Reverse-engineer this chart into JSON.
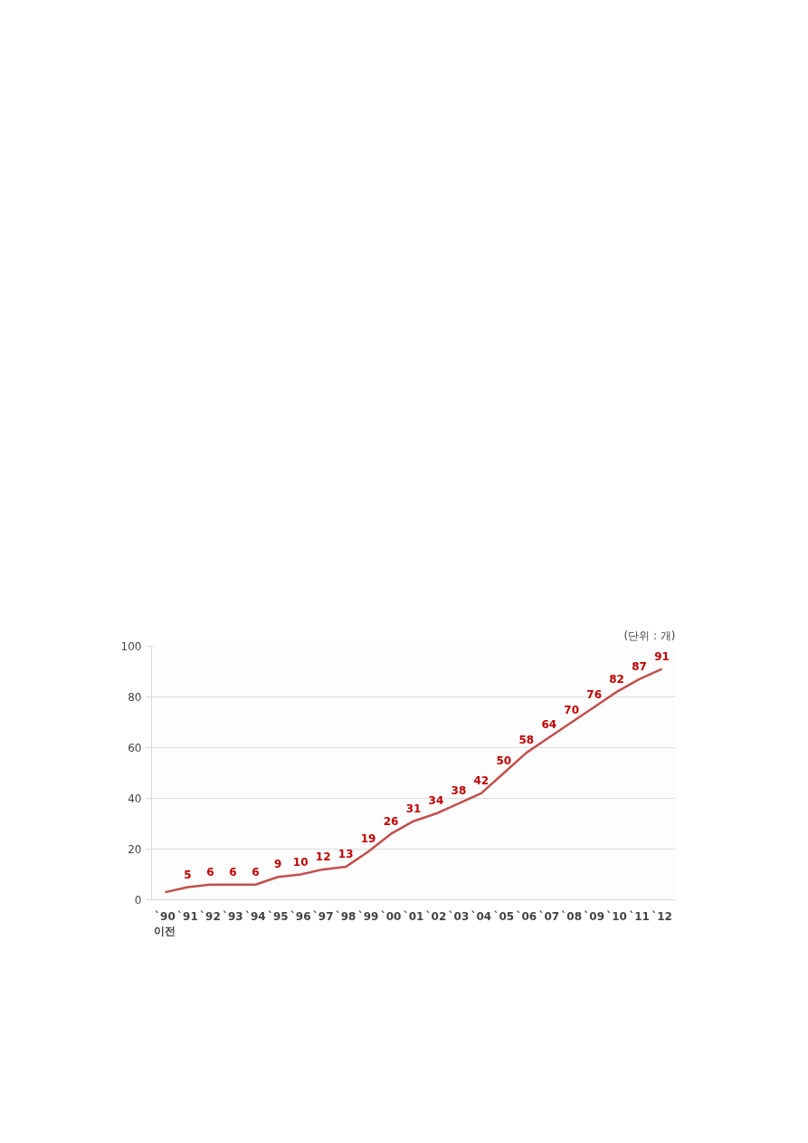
{
  "chart_data": {
    "type": "line",
    "categories": [
      "`90\n이전",
      "`91",
      "`92",
      "`93",
      "`94",
      "`95",
      "`96",
      "`97",
      "`98",
      "`99",
      "`00",
      "`01",
      "`02",
      "`03",
      "`04",
      "`05",
      "`06",
      "`07",
      "`08",
      "`09",
      "`10",
      "`11",
      "`12"
    ],
    "series": [
      {
        "color": "#c0504d",
        "values": [
          3,
          5,
          6,
          6,
          6,
          9,
          10,
          12,
          13,
          19,
          26,
          31,
          34,
          38,
          42,
          50,
          58,
          64,
          70,
          76,
          82,
          87,
          91
        ],
        "value_labels": [
          null,
          "5",
          "6",
          "6",
          "6",
          "9",
          "10",
          "12",
          "13",
          "19",
          "26",
          "31",
          "34",
          "38",
          "42",
          "50",
          "58",
          "64",
          "70",
          "76",
          "82",
          "87",
          "91"
        ]
      }
    ],
    "ylim": [
      0,
      100
    ],
    "yticks": [
      0,
      20,
      40,
      60,
      80,
      100
    ],
    "grid": "y",
    "marker": "none",
    "line_style": "solid",
    "annotations": [
      "(단위 : 개)"
    ]
  }
}
